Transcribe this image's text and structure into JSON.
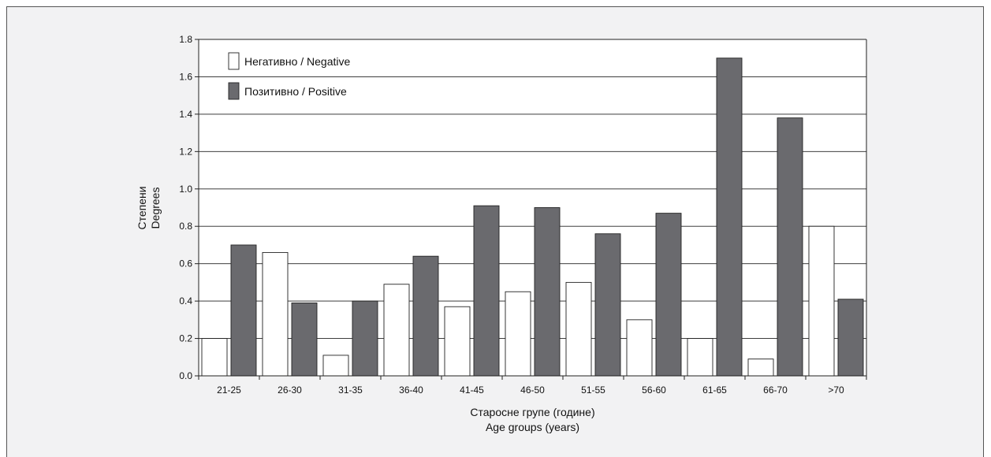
{
  "chart_data": {
    "type": "bar",
    "categories": [
      "21-25",
      "26-30",
      "31-35",
      "36-40",
      "41-45",
      "46-50",
      "51-55",
      "56-60",
      "61-65",
      "66-70",
      ">70"
    ],
    "series": [
      {
        "name": "Негативно / Negative",
        "color": "#ffffff",
        "values": [
          0.2,
          0.66,
          0.11,
          0.49,
          0.37,
          0.45,
          0.5,
          0.3,
          0.2,
          0.09,
          0.8
        ]
      },
      {
        "name": "Позитивно / Positive",
        "color": "#6a6a6e",
        "values": [
          0.7,
          0.39,
          0.4,
          0.64,
          0.91,
          0.9,
          0.76,
          0.87,
          1.7,
          1.38,
          0.41
        ]
      }
    ],
    "ylim": [
      0,
      1.8
    ],
    "yticks": [
      "0.0",
      "0.2",
      "0.4",
      "0.6",
      "0.8",
      "1.0",
      "1.2",
      "1.4",
      "1.6",
      "1.8"
    ],
    "ylabel_line1": "Степени",
    "ylabel_line2": "Degrees",
    "xlabel_line1": "Старосне групе (године)",
    "xlabel_line2": "Age groups (years)",
    "grid": true,
    "legend_position": "top-left",
    "plot_background": "#ffffff",
    "frame_background": "#f2f2f3"
  }
}
